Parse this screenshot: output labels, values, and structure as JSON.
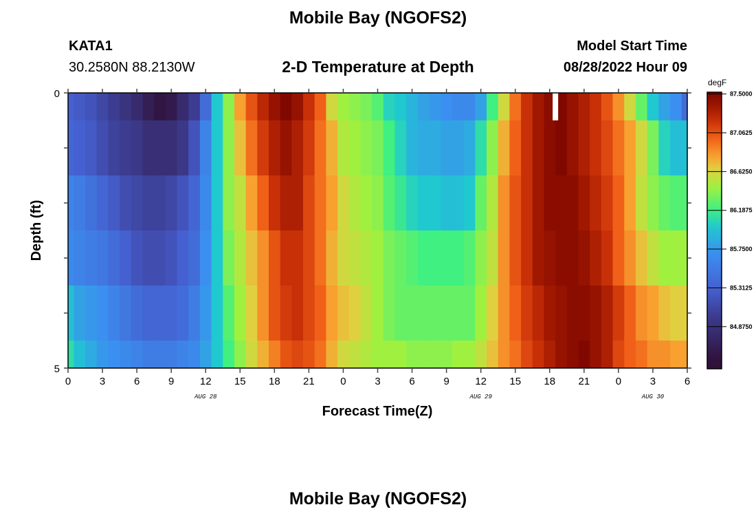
{
  "header": {
    "title": "Mobile Bay (NGOFS2)",
    "station": "KATA1",
    "coords": "30.2580N  88.2130W",
    "subtitle": "2-D Temperature at Depth",
    "model_start_label": "Model Start Time",
    "model_start_value": "08/28/2022 Hour 09"
  },
  "footer": {
    "title": "Mobile Bay (NGOFS2)"
  },
  "chart_data": {
    "type": "heatmap",
    "title": "2-D Temperature at Depth",
    "xlabel": "Forecast Time(Z)",
    "ylabel": "Depth (ft)",
    "x_unit": "hours since Aug 28 00Z",
    "xlim": [
      0,
      54
    ],
    "ylim": [
      0,
      5
    ],
    "x_tick_values": [
      0,
      3,
      6,
      9,
      12,
      15,
      18,
      21,
      24,
      27,
      30,
      33,
      36,
      39,
      42,
      45,
      48,
      51,
      54
    ],
    "x_tick_labels": [
      "0",
      "3",
      "6",
      "9",
      "12",
      "15",
      "18",
      "21",
      "0",
      "3",
      "6",
      "9",
      "12",
      "15",
      "18",
      "21",
      "0",
      "3",
      "6"
    ],
    "y_tick_labels": [
      "0",
      "5"
    ],
    "date_labels": [
      {
        "hour": 12,
        "text": "AUG 28"
      },
      {
        "hour": 36,
        "text": "AUG 29"
      },
      {
        "hour": 51,
        "text": "AUG 30"
      }
    ],
    "colorbar": {
      "unit": "degF",
      "range": [
        84.4,
        87.52
      ],
      "tick_labels": [
        "87.5000",
        "87.0625",
        "86.6250",
        "86.1875",
        "85.7500",
        "85.3125",
        "84.8750"
      ],
      "tick_values": [
        87.5,
        87.0625,
        86.625,
        86.1875,
        85.75,
        85.3125,
        84.875
      ],
      "stops": [
        [
          84.5,
          "#30123b"
        ],
        [
          85.0,
          "#3c3c90"
        ],
        [
          85.3,
          "#4560d0"
        ],
        [
          85.7,
          "#3b8ff0"
        ],
        [
          86.0,
          "#20c8d0"
        ],
        [
          86.2,
          "#40f080"
        ],
        [
          86.45,
          "#a0f040"
        ],
        [
          86.65,
          "#e0d040"
        ],
        [
          86.8,
          "#f8a030"
        ],
        [
          87.0,
          "#f06018"
        ],
        [
          87.2,
          "#c83008"
        ],
        [
          87.35,
          "#a01800"
        ],
        [
          87.5,
          "#800800"
        ]
      ]
    },
    "missing_hours": [
      42.5
    ],
    "depths": [
      0,
      1,
      2,
      3,
      4,
      5
    ],
    "hours": "0..54 step 1",
    "values": [
      [
        85.3,
        85.25,
        85.2,
        85.1,
        85.0,
        84.9,
        84.8,
        84.65,
        84.55,
        84.6,
        84.8,
        85.0,
        85.4,
        86.0,
        86.4,
        86.8,
        87.05,
        87.25,
        87.4,
        87.5,
        87.4,
        87.2,
        87.0,
        86.6,
        86.45,
        86.4,
        86.35,
        86.25,
        86.05,
        86.0,
        85.9,
        85.8,
        85.75,
        85.7,
        85.65,
        85.65,
        85.8,
        86.2,
        86.6,
        86.95,
        87.2,
        87.35,
        87.45,
        87.5,
        87.4,
        87.3,
        87.2,
        87.05,
        86.85,
        86.6,
        86.3,
        86.0,
        85.8,
        85.7,
        85.4
      ],
      [
        85.35,
        85.3,
        85.25,
        85.15,
        85.05,
        85.0,
        84.95,
        84.85,
        84.85,
        84.85,
        84.95,
        85.2,
        85.6,
        86.0,
        86.4,
        86.7,
        86.95,
        87.15,
        87.3,
        87.4,
        87.3,
        87.15,
        86.95,
        86.75,
        86.5,
        86.45,
        86.4,
        86.35,
        86.2,
        86.05,
        85.9,
        85.85,
        85.85,
        85.8,
        85.8,
        85.85,
        86.1,
        86.4,
        86.75,
        87.0,
        87.2,
        87.35,
        87.45,
        87.5,
        87.4,
        87.3,
        87.2,
        87.1,
        86.95,
        86.8,
        86.6,
        86.35,
        86.05,
        85.95,
        85.95
      ],
      [
        85.6,
        85.55,
        85.45,
        85.35,
        85.25,
        85.15,
        85.1,
        85.05,
        85.05,
        85.1,
        85.2,
        85.35,
        85.65,
        86.0,
        86.4,
        86.55,
        86.8,
        87.0,
        87.2,
        87.3,
        87.3,
        87.1,
        86.95,
        86.8,
        86.6,
        86.5,
        86.45,
        86.4,
        86.25,
        86.15,
        86.05,
        86.0,
        86.0,
        85.95,
        85.95,
        86.0,
        86.3,
        86.5,
        86.85,
        87.05,
        87.2,
        87.35,
        87.45,
        87.45,
        87.45,
        87.35,
        87.25,
        87.15,
        87.0,
        86.8,
        86.55,
        86.4,
        86.3,
        86.25,
        86.25
      ],
      [
        85.65,
        85.6,
        85.55,
        85.5,
        85.4,
        85.3,
        85.2,
        85.15,
        85.15,
        85.2,
        85.3,
        85.4,
        85.7,
        86.0,
        86.35,
        86.5,
        86.7,
        86.85,
        87.05,
        87.2,
        87.2,
        87.1,
        86.95,
        86.75,
        86.6,
        86.55,
        86.5,
        86.45,
        86.35,
        86.3,
        86.25,
        86.2,
        86.2,
        86.2,
        86.2,
        86.25,
        86.4,
        86.55,
        86.85,
        87.05,
        87.2,
        87.35,
        87.4,
        87.45,
        87.45,
        87.4,
        87.3,
        87.2,
        87.0,
        86.85,
        86.7,
        86.55,
        86.45,
        86.45,
        86.45
      ],
      [
        85.95,
        85.8,
        85.75,
        85.7,
        85.6,
        85.5,
        85.4,
        85.35,
        85.35,
        85.35,
        85.4,
        85.55,
        85.75,
        86.0,
        86.25,
        86.45,
        86.65,
        86.85,
        87.05,
        87.15,
        87.2,
        87.1,
        87.0,
        86.8,
        86.7,
        86.65,
        86.55,
        86.45,
        86.35,
        86.3,
        86.3,
        86.3,
        86.3,
        86.3,
        86.3,
        86.3,
        86.45,
        86.65,
        86.85,
        87.0,
        87.15,
        87.25,
        87.35,
        87.4,
        87.45,
        87.45,
        87.4,
        87.3,
        87.15,
        87.0,
        86.85,
        86.8,
        86.7,
        86.65,
        86.65
      ],
      [
        86.1,
        85.95,
        85.85,
        85.75,
        85.7,
        85.65,
        85.6,
        85.55,
        85.55,
        85.55,
        85.6,
        85.65,
        85.8,
        86.0,
        86.2,
        86.4,
        86.6,
        86.75,
        86.9,
        87.05,
        87.1,
        87.05,
        86.95,
        86.75,
        86.6,
        86.55,
        86.5,
        86.45,
        86.45,
        86.45,
        86.4,
        86.4,
        86.4,
        86.4,
        86.45,
        86.45,
        86.55,
        86.7,
        86.85,
        86.95,
        87.1,
        87.2,
        87.3,
        87.4,
        87.45,
        87.5,
        87.4,
        87.3,
        87.1,
        87.0,
        86.95,
        86.85,
        86.85,
        86.8,
        86.8
      ]
    ]
  }
}
